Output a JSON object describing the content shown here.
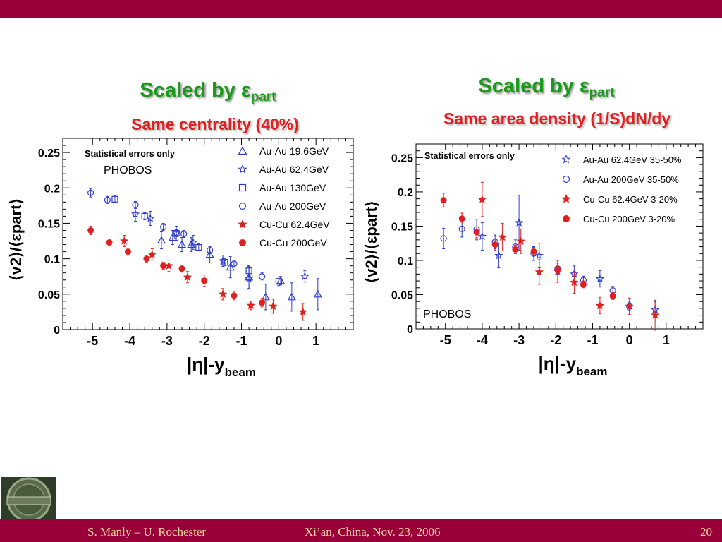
{
  "slide": {
    "colors": {
      "bar": "#99003a",
      "footer_text": "#f0d8a0",
      "blue": "#2d3cd0",
      "red": "#e02020",
      "green": "#1a9a1a"
    },
    "footer": {
      "left": "S. Manly – U. Rochester",
      "center": "Xi’an, China, Nov. 23, 2006",
      "right": "20"
    },
    "logo": {
      "text": "MELIORA"
    }
  },
  "chart_data": [
    {
      "type": "scatter",
      "title": "Scaled by εpart",
      "title_main": "Scaled by ε",
      "title_sub": "part",
      "subtitle": "Same centrality (40%)",
      "annotations": [
        "Statistical errors only",
        "PHOBOS"
      ],
      "xlabel_main": "|η|-y",
      "xlabel_sub": "beam",
      "ylabel": "⟨v2⟩/⟨εpart⟩",
      "xlim": [
        -5.8,
        2.0
      ],
      "ylim": [
        0,
        0.27
      ],
      "xticks": [
        -5,
        -4,
        -3,
        -2,
        -1,
        0,
        1
      ],
      "xtick_labels": [
        "-5",
        "-4",
        "-3",
        "-2",
        "-1",
        "0",
        "1"
      ],
      "yticks": [
        0,
        0.05,
        0.1,
        0.15,
        0.2,
        0.25
      ],
      "ytick_labels": [
        "0",
        "0.05",
        "0.1",
        "0.15",
        "0.2",
        "0.25"
      ],
      "legend_position": "top-right",
      "series": [
        {
          "name": "Au-Au 19.6GeV",
          "marker": "triangle-open",
          "color": "#2d3cd0",
          "points": [
            [
              -3.15,
              0.126,
              0.012
            ],
            [
              -2.85,
              0.13,
              0.01
            ],
            [
              -2.6,
              0.12,
              0.01
            ],
            [
              -2.35,
              0.12,
              0.01
            ],
            [
              -1.85,
              0.106,
              0.012
            ],
            [
              -1.3,
              0.088,
              0.015
            ],
            [
              -0.8,
              0.074,
              0.016
            ],
            [
              -0.35,
              0.046,
              0.018
            ],
            [
              0.35,
              0.046,
              0.02
            ],
            [
              0.05,
              0.069,
              0.006
            ],
            [
              1.05,
              0.05,
              0.022
            ]
          ]
        },
        {
          "name": "Au-Au 62.4GeV",
          "marker": "star-open",
          "color": "#2d3cd0",
          "points": [
            [
              -3.85,
              0.163,
              0.01
            ],
            [
              -3.45,
              0.157,
              0.01
            ],
            [
              -2.75,
              0.136,
              0.01
            ],
            [
              -2.3,
              0.123,
              0.01
            ],
            [
              -1.5,
              0.097,
              0.008
            ],
            [
              -0.8,
              0.072,
              0.015
            ],
            [
              0.7,
              0.075,
              0.008
            ]
          ]
        },
        {
          "name": "Au-Au 130GeV",
          "marker": "square-open",
          "color": "#2d3cd0",
          "points": [
            [
              -4.4,
              0.184,
              0.005
            ],
            [
              -3.6,
              0.16,
              0.005
            ],
            [
              -2.75,
              0.136,
              0.005
            ],
            [
              -2.15,
              0.116,
              0.005
            ],
            [
              -1.45,
              0.095,
              0.005
            ],
            [
              -0.8,
              0.083,
              0.006
            ],
            [
              0.0,
              0.068,
              0.006
            ]
          ]
        },
        {
          "name": "Au-Au 200GeV",
          "marker": "circle-open",
          "color": "#2d3cd0",
          "points": [
            [
              -5.05,
              0.193,
              0.006
            ],
            [
              -4.6,
              0.183,
              0.005
            ],
            [
              -3.85,
              0.176,
              0.005
            ],
            [
              -3.1,
              0.145,
              0.005
            ],
            [
              -2.55,
              0.135,
              0.005
            ],
            [
              -1.85,
              0.112,
              0.005
            ],
            [
              -1.2,
              0.093,
              0.005
            ],
            [
              -0.45,
              0.075,
              0.005
            ]
          ]
        },
        {
          "name": "Cu-Cu 62.4GeV",
          "marker": "star-filled",
          "color": "#e02020",
          "points": [
            [
              -4.15,
              0.125,
              0.008
            ],
            [
              -3.4,
              0.106,
              0.008
            ],
            [
              -2.95,
              0.09,
              0.008
            ],
            [
              -2.45,
              0.074,
              0.008
            ],
            [
              -1.5,
              0.05,
              0.008
            ],
            [
              -0.75,
              0.034,
              0.006
            ],
            [
              -0.15,
              0.033,
              0.01
            ],
            [
              0.65,
              0.025,
              0.012
            ]
          ]
        },
        {
          "name": "Cu-Cu 200GeV",
          "marker": "circle-filled",
          "color": "#e02020",
          "points": [
            [
              -5.05,
              0.14,
              0.006
            ],
            [
              -4.55,
              0.123,
              0.005
            ],
            [
              -4.05,
              0.11,
              0.005
            ],
            [
              -3.55,
              0.1,
              0.005
            ],
            [
              -3.1,
              0.09,
              0.005
            ],
            [
              -2.6,
              0.086,
              0.005
            ],
            [
              -2.0,
              0.069,
              0.008
            ],
            [
              -1.2,
              0.048,
              0.006
            ],
            [
              -0.45,
              0.038,
              0.006
            ]
          ]
        }
      ]
    },
    {
      "type": "scatter",
      "title": "Scaled by εpart",
      "title_main": "Scaled by ε",
      "title_sub": "part",
      "subtitle": "Same area density (1/S)dN/dy",
      "annotations": [
        "Statistical errors only",
        "PHOBOS"
      ],
      "xlabel_main": "|η|-y",
      "xlabel_sub": "beam",
      "ylabel": "⟨v2⟩/⟨εpart⟩",
      "xlim": [
        -5.8,
        2.0
      ],
      "ylim": [
        0,
        0.27
      ],
      "xticks": [
        -5,
        -4,
        -3,
        -2,
        -1,
        0,
        1
      ],
      "xtick_labels": [
        "-5",
        "-4",
        "-3",
        "-2",
        "-1",
        "0",
        "1"
      ],
      "yticks": [
        0,
        0.05,
        0.1,
        0.15,
        0.2,
        0.25
      ],
      "ytick_labels": [
        "0",
        "0.05",
        "0.1",
        "0.15",
        "0.2",
        "0.25"
      ],
      "legend_position": "top-right",
      "series": [
        {
          "name": "Au-Au 62.4GeV 35-50%",
          "marker": "star-open",
          "color": "#2d3cd0",
          "points": [
            [
              -4.0,
              0.135,
              0.02
            ],
            [
              -3.55,
              0.107,
              0.018
            ],
            [
              -3.0,
              0.155,
              0.04
            ],
            [
              -2.45,
              0.107,
              0.018
            ],
            [
              -1.5,
              0.08,
              0.012
            ],
            [
              -0.8,
              0.073,
              0.012
            ],
            [
              0.7,
              0.028,
              0.012
            ]
          ]
        },
        {
          "name": "Au-Au 200GeV 35-50%",
          "marker": "circle-open",
          "color": "#2d3cd0",
          "points": [
            [
              -5.05,
              0.132,
              0.015
            ],
            [
              -4.55,
              0.146,
              0.012
            ],
            [
              -4.15,
              0.145,
              0.015
            ],
            [
              -3.65,
              0.127,
              0.01
            ],
            [
              -3.1,
              0.12,
              0.01
            ],
            [
              -2.6,
              0.11,
              0.01
            ],
            [
              -1.95,
              0.088,
              0.008
            ],
            [
              -1.25,
              0.071,
              0.006
            ],
            [
              -0.45,
              0.056,
              0.006
            ],
            [
              0.0,
              0.033,
              0.006
            ]
          ]
        },
        {
          "name": "Cu-Cu 62.4GeV 3-20%",
          "marker": "star-filled",
          "color": "#e02020",
          "points": [
            [
              -4.0,
              0.189,
              0.025
            ],
            [
              -3.45,
              0.134,
              0.02
            ],
            [
              -2.95,
              0.128,
              0.018
            ],
            [
              -2.45,
              0.083,
              0.018
            ],
            [
              -1.95,
              0.084,
              0.016
            ],
            [
              -1.5,
              0.068,
              0.016
            ],
            [
              -0.8,
              0.034,
              0.012
            ],
            [
              0.0,
              0.033,
              0.012
            ],
            [
              0.7,
              0.02,
              0.022
            ]
          ]
        },
        {
          "name": "Cu-Cu 200GeV 3-20%",
          "marker": "circle-filled",
          "color": "#e02020",
          "points": [
            [
              -5.05,
              0.188,
              0.01
            ],
            [
              -4.55,
              0.161,
              0.008
            ],
            [
              -4.15,
              0.141,
              0.008
            ],
            [
              -3.65,
              0.123,
              0.008
            ],
            [
              -3.1,
              0.116,
              0.006
            ],
            [
              -2.6,
              0.113,
              0.006
            ],
            [
              -1.95,
              0.086,
              0.005
            ],
            [
              -1.25,
              0.065,
              0.005
            ],
            [
              -0.45,
              0.048,
              0.005
            ]
          ]
        }
      ]
    }
  ]
}
